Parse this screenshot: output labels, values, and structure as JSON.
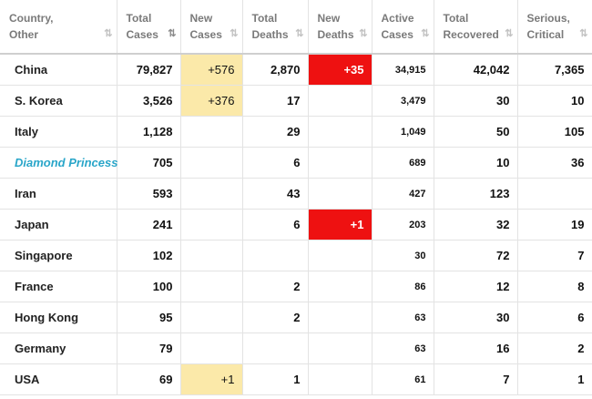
{
  "columns": [
    {
      "label": "Country,\nOther",
      "sort": "⇅"
    },
    {
      "label": "Total\nCases",
      "sort": "⇅"
    },
    {
      "label": "New\nCases",
      "sort": "⇅"
    },
    {
      "label": "Total\nDeaths",
      "sort": "⇅"
    },
    {
      "label": "New\nDeaths",
      "sort": "⇅"
    },
    {
      "label": "Active\nCases",
      "sort": "⇅"
    },
    {
      "label": "Total\nRecovered",
      "sort": "⇅"
    },
    {
      "label": "Serious,\nCritical",
      "sort": "⇅"
    }
  ],
  "rows": [
    {
      "country": "China",
      "total_cases": "79,827",
      "new_cases": "+576",
      "total_deaths": "2,870",
      "new_deaths": "+35",
      "active_cases": "34,915",
      "total_recovered": "42,042",
      "serious_critical": "7,365"
    },
    {
      "country": "S. Korea",
      "total_cases": "3,526",
      "new_cases": "+376",
      "total_deaths": "17",
      "new_deaths": "",
      "active_cases": "3,479",
      "total_recovered": "30",
      "serious_critical": "10"
    },
    {
      "country": "Italy",
      "total_cases": "1,128",
      "new_cases": "",
      "total_deaths": "29",
      "new_deaths": "",
      "active_cases": "1,049",
      "total_recovered": "50",
      "serious_critical": "105"
    },
    {
      "country": "Diamond Princess",
      "total_cases": "705",
      "new_cases": "",
      "total_deaths": "6",
      "new_deaths": "",
      "active_cases": "689",
      "total_recovered": "10",
      "serious_critical": "36"
    },
    {
      "country": "Iran",
      "total_cases": "593",
      "new_cases": "",
      "total_deaths": "43",
      "new_deaths": "",
      "active_cases": "427",
      "total_recovered": "123",
      "serious_critical": ""
    },
    {
      "country": "Japan",
      "total_cases": "241",
      "new_cases": "",
      "total_deaths": "6",
      "new_deaths": "+1",
      "active_cases": "203",
      "total_recovered": "32",
      "serious_critical": "19"
    },
    {
      "country": "Singapore",
      "total_cases": "102",
      "new_cases": "",
      "total_deaths": "",
      "new_deaths": "",
      "active_cases": "30",
      "total_recovered": "72",
      "serious_critical": "7"
    },
    {
      "country": "France",
      "total_cases": "100",
      "new_cases": "",
      "total_deaths": "2",
      "new_deaths": "",
      "active_cases": "86",
      "total_recovered": "12",
      "serious_critical": "8"
    },
    {
      "country": "Hong Kong",
      "total_cases": "95",
      "new_cases": "",
      "total_deaths": "2",
      "new_deaths": "",
      "active_cases": "63",
      "total_recovered": "30",
      "serious_critical": "6"
    },
    {
      "country": "Germany",
      "total_cases": "79",
      "new_cases": "",
      "total_deaths": "",
      "new_deaths": "",
      "active_cases": "63",
      "total_recovered": "16",
      "serious_critical": "2"
    },
    {
      "country": "USA",
      "total_cases": "69",
      "new_cases": "+1",
      "total_deaths": "1",
      "new_deaths": "",
      "active_cases": "61",
      "total_recovered": "7",
      "serious_critical": "1"
    }
  ],
  "colors": {
    "new_cases_highlight": "#fbe9a9",
    "new_deaths_highlight": "#ee1111",
    "link": "#2aa6c9"
  }
}
